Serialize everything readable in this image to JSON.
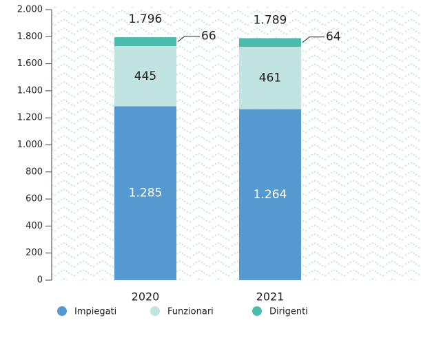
{
  "chart_data": {
    "type": "stacked_bar",
    "categories": [
      "2020",
      "2021"
    ],
    "series": [
      {
        "name": "Impiegati",
        "color": "#5599d0",
        "values": [
          1285,
          1264
        ],
        "value_labels": [
          "1.285",
          "1.264"
        ]
      },
      {
        "name": "Funzionari",
        "color": "#c2e4e0",
        "values": [
          445,
          461
        ]
      },
      {
        "name": "Dirigenti",
        "color": "#4dbcae",
        "values": [
          66,
          64
        ]
      }
    ],
    "totals": {
      "values": [
        1796,
        1789
      ],
      "value_labels": [
        "1.796",
        "1.789"
      ]
    },
    "ylim": [
      0,
      2000
    ],
    "yticks": [
      0,
      200,
      400,
      600,
      800,
      {
        "value": 1000,
        "label": "1.000"
      },
      {
        "value": 1200,
        "label": "1.200"
      },
      {
        "value": 1400,
        "label": "1.400"
      },
      {
        "value": 1600,
        "label": "1.600"
      },
      {
        "value": 1800,
        "label": "1.800"
      },
      {
        "value": 2000,
        "label": "2.000"
      }
    ],
    "legend": "bottom"
  }
}
